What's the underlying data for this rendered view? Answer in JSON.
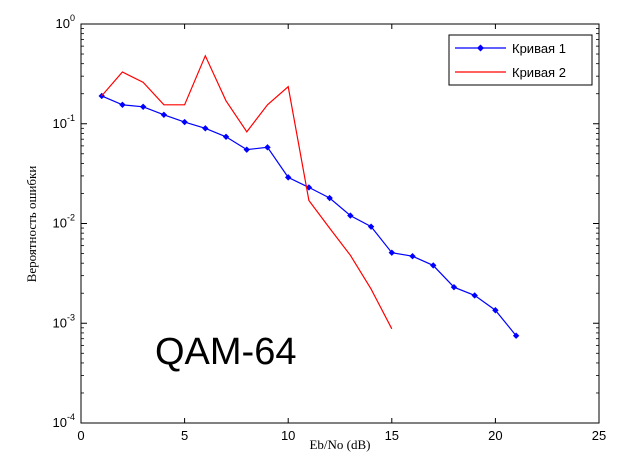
{
  "chart_data": {
    "type": "line",
    "xlabel": "Eb/No (dB)",
    "ylabel": "Вероятность ошибки",
    "xlim": [
      0,
      25
    ],
    "ylim": [
      0.0001,
      1
    ],
    "yscale": "log",
    "grid": false,
    "legend_position": "top-right",
    "x_ticks": [
      "0",
      "5",
      "10",
      "15",
      "20",
      "25"
    ],
    "y_ticks": [
      {
        "base": "10",
        "exp": "0",
        "value": 1
      },
      {
        "base": "10",
        "exp": "-1",
        "value": 0.1
      },
      {
        "base": "10",
        "exp": "-2",
        "value": 0.01
      },
      {
        "base": "10",
        "exp": "-3",
        "value": 0.001
      },
      {
        "base": "10",
        "exp": "-4",
        "value": 0.0001
      }
    ],
    "annotation": "QAM-64",
    "series": [
      {
        "name": "Кривая 1",
        "color": "#0000ff",
        "marker": "diamond",
        "x": [
          1,
          2,
          3,
          4,
          5,
          6,
          7,
          8,
          9,
          10,
          11,
          12,
          13,
          14,
          15,
          16,
          17,
          18,
          19,
          20,
          21
        ],
        "y": [
          0.19,
          0.155,
          0.148,
          0.123,
          0.104,
          0.09,
          0.074,
          0.055,
          0.058,
          0.029,
          0.023,
          0.018,
          0.012,
          0.0093,
          0.0051,
          0.0047,
          0.0038,
          0.0023,
          0.0019,
          0.00135,
          0.00075
        ]
      },
      {
        "name": "Кривая 2",
        "color": "#ff0000",
        "marker": "none",
        "x": [
          1,
          2,
          3,
          4,
          5,
          6,
          7,
          8,
          9,
          10,
          11,
          12,
          13,
          14,
          15
        ],
        "y": [
          0.19,
          0.33,
          0.26,
          0.155,
          0.155,
          0.48,
          0.17,
          0.083,
          0.155,
          0.235,
          0.017,
          0.009,
          0.0048,
          0.0022,
          0.00088
        ]
      }
    ]
  }
}
